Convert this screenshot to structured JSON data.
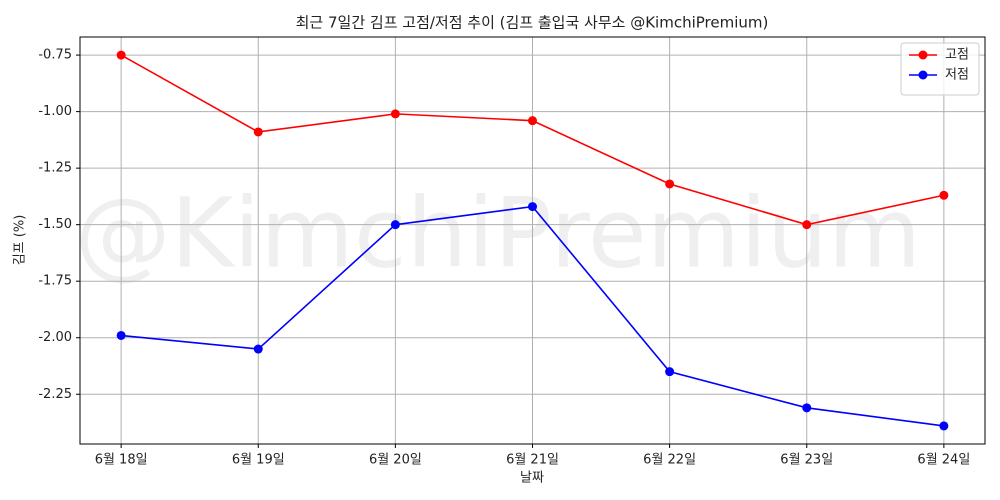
{
  "chart_data": {
    "type": "line",
    "title": "최근 7일간 김프 고점/저점 추이 (김프 출입국 사무소 @KimchiPremium)",
    "watermark": "@KimchiPremium",
    "x_label": "날짜",
    "y_label": "김프 (%)",
    "categories": [
      "6월 18일",
      "6월 19일",
      "6월 20일",
      "6월 21일",
      "6월 22일",
      "6월 23일",
      "6월 24일"
    ],
    "series": [
      {
        "name": "고점",
        "color": "#ff0000",
        "values": [
          -0.75,
          -1.09,
          -1.01,
          -1.04,
          -1.32,
          -1.5,
          -1.37
        ]
      },
      {
        "name": "저점",
        "color": "#0000ff",
        "values": [
          -1.99,
          -2.05,
          -1.5,
          -1.42,
          -2.15,
          -2.31,
          -2.39
        ]
      }
    ],
    "ylim": [
      -2.47,
      -0.67
    ],
    "yticks": [
      -0.75,
      {
        "value": -1,
        "label": "-1.00"
      },
      -1.25,
      {
        "value": -1.5,
        "label": "-1.50"
      },
      -1.75,
      {
        "value": -2,
        "label": "-2.00"
      },
      -2.25
    ],
    "grid": true,
    "legend": "upper right"
  }
}
